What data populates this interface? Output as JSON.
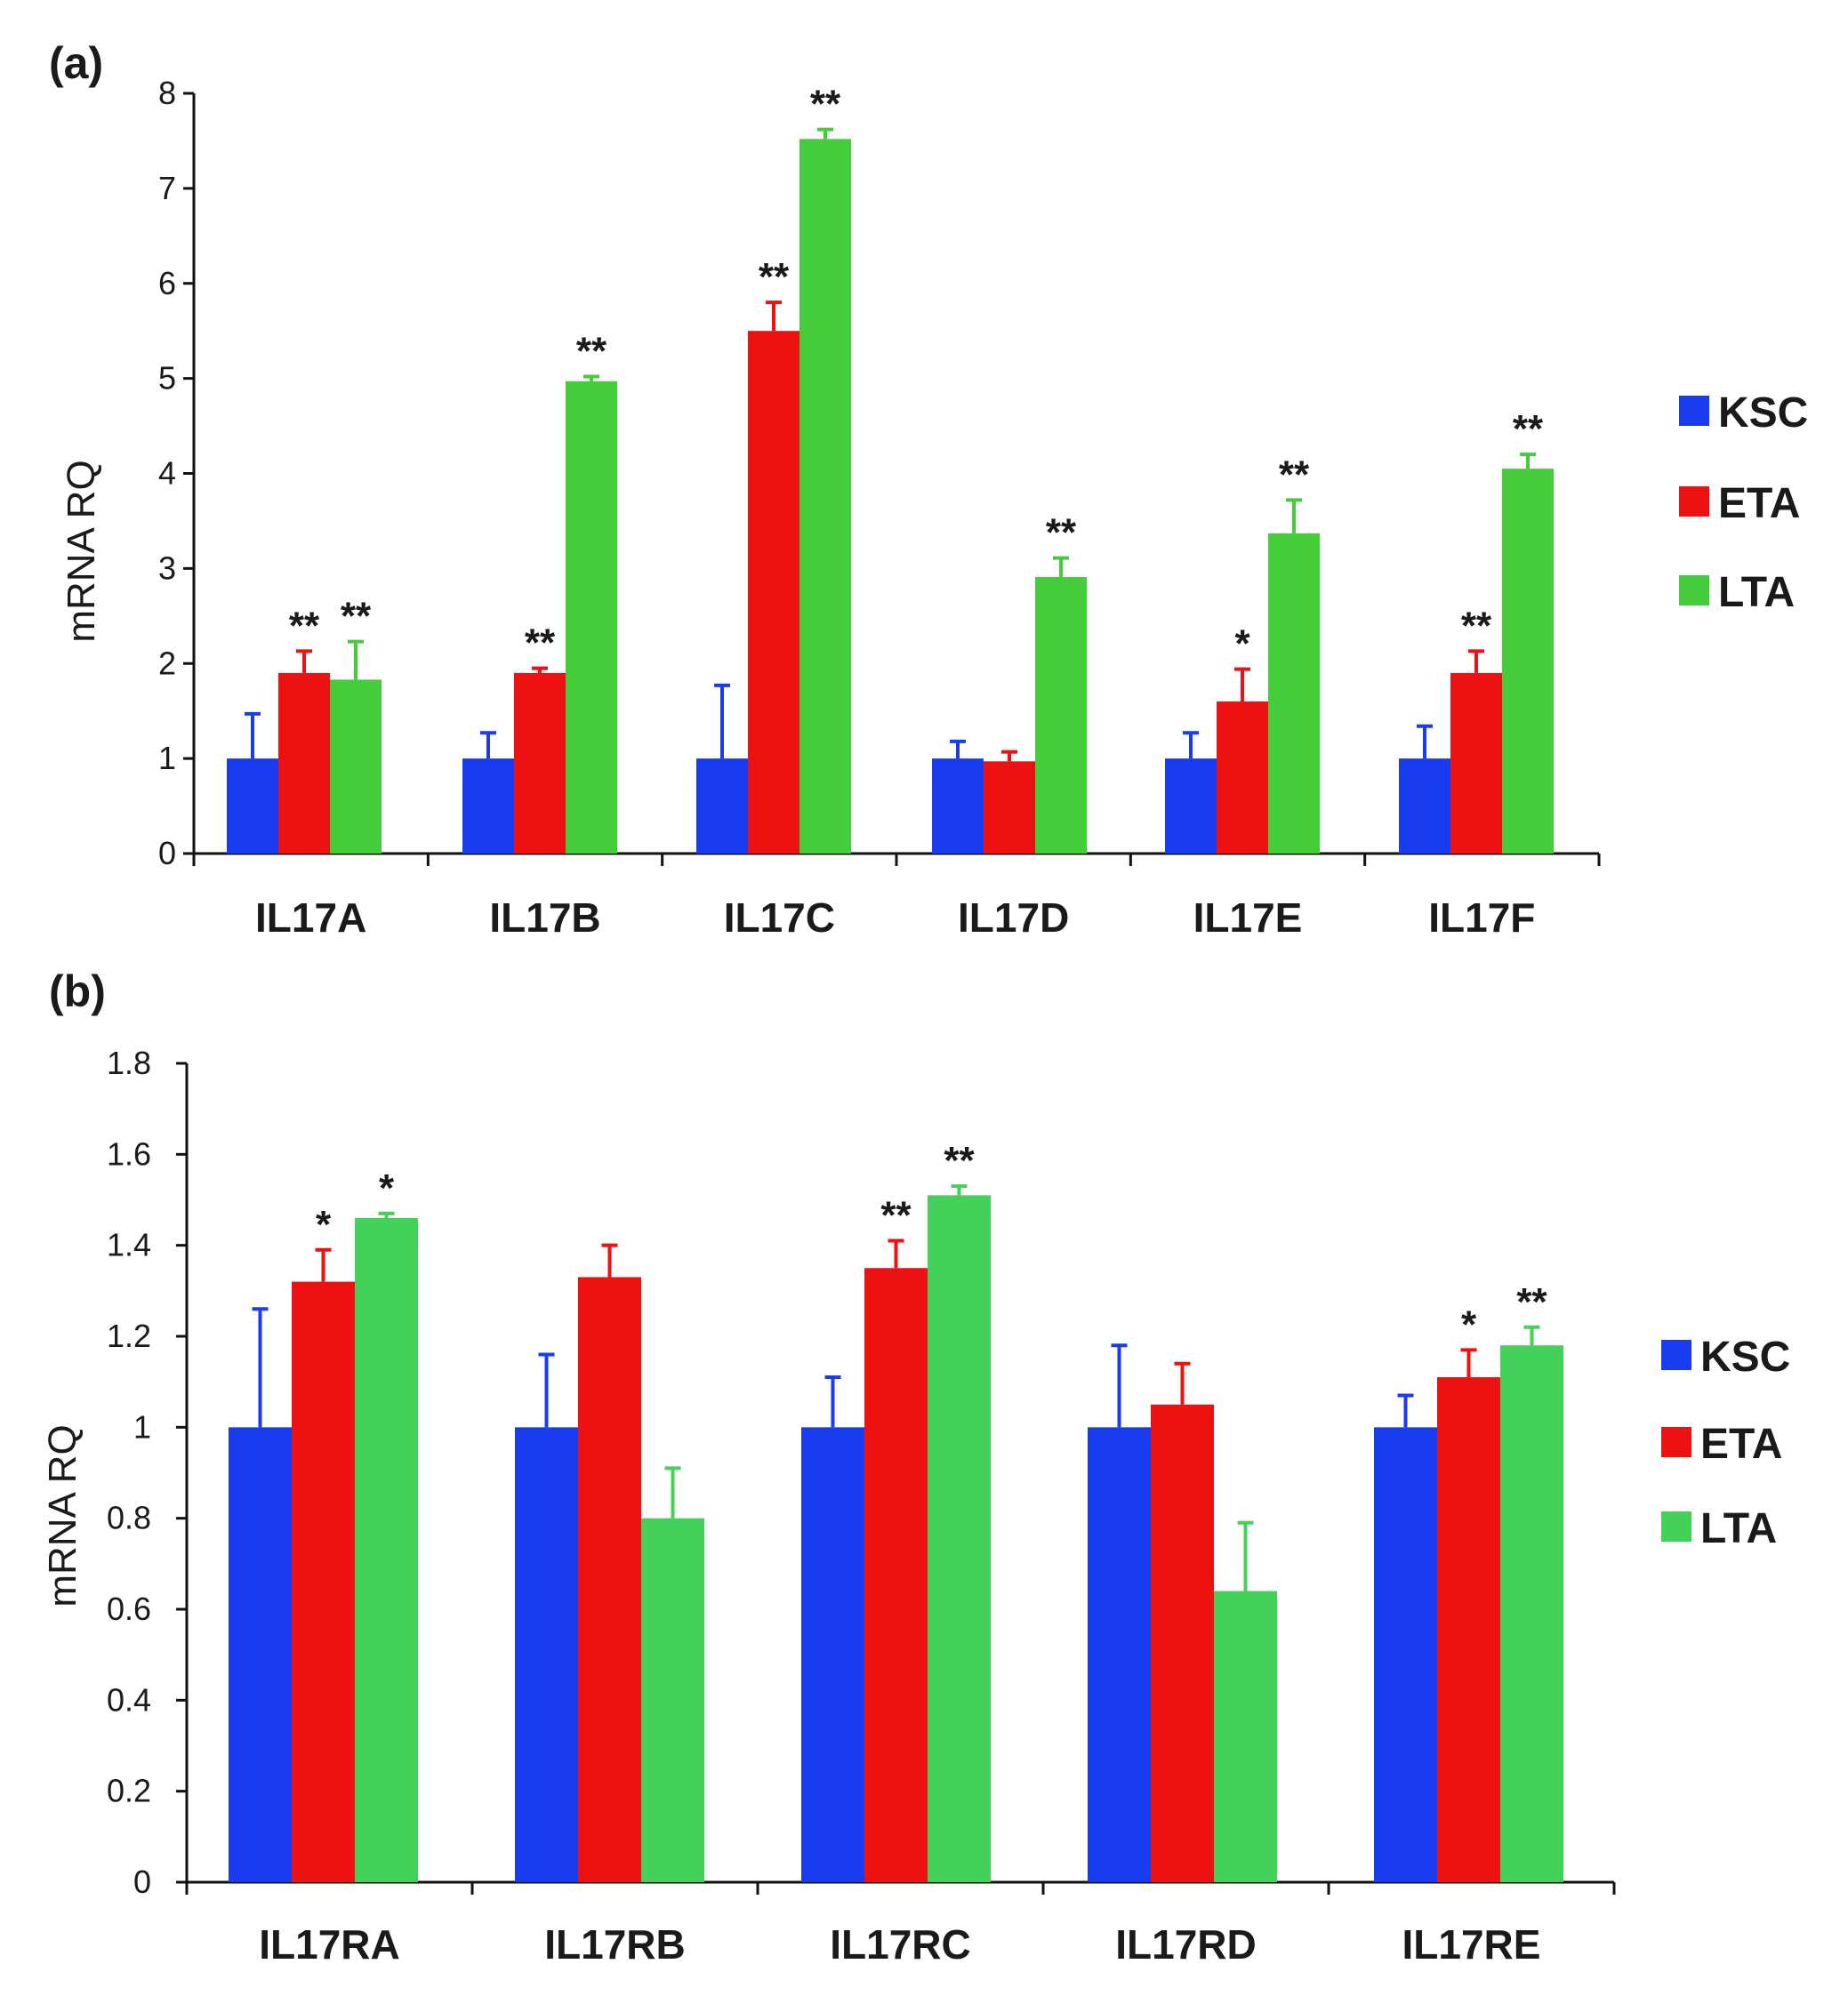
{
  "figure": {
    "panels": [
      {
        "label": "(a)",
        "ylabel": "mRNA RQ",
        "yticks": [
          "0",
          "1",
          "2",
          "3",
          "4",
          "5",
          "6",
          "7",
          "8"
        ],
        "legend": [
          "KSC",
          "ETA",
          "LTA"
        ]
      },
      {
        "label": "(b)",
        "ylabel": "mRNA RQ",
        "yticks": [
          "0",
          "0.2",
          "0.4",
          "0.6",
          "0.8",
          "1",
          "1.2",
          "1.4",
          "1.6",
          "1.8"
        ],
        "legend": [
          "KSC",
          "ETA",
          "LTA"
        ]
      }
    ]
  },
  "chart_data": [
    {
      "type": "bar",
      "title": "",
      "xlabel": "",
      "ylabel": "mRNA RQ",
      "ylim": [
        0,
        8
      ],
      "categories": [
        "IL17A",
        "IL17B",
        "IL17C",
        "IL17D",
        "IL17E",
        "IL17F"
      ],
      "legend_position": "right",
      "grid": false,
      "series": [
        {
          "name": "KSC",
          "color": "#1a3cf0",
          "values": [
            1,
            1,
            1,
            1,
            1,
            1
          ],
          "errors": [
            0.47,
            0.27,
            0.77,
            0.18,
            0.27,
            0.34
          ],
          "sig": [
            "",
            "",
            "",
            "",
            "",
            ""
          ]
        },
        {
          "name": "ETA",
          "color": "#ee1111",
          "values": [
            1.9,
            1.9,
            5.5,
            0.97,
            1.6,
            1.9
          ],
          "errors": [
            0.23,
            0.05,
            0.3,
            0.1,
            0.34,
            0.23
          ],
          "sig": [
            "**",
            "**",
            "**",
            "",
            "*",
            "**"
          ]
        },
        {
          "name": "LTA",
          "color": "#44cc3a",
          "values": [
            1.83,
            4.97,
            7.52,
            2.91,
            3.37,
            4.05
          ],
          "errors": [
            0.4,
            0.05,
            0.1,
            0.2,
            0.35,
            0.15
          ],
          "sig": [
            "**",
            "**",
            "**",
            "**",
            "**",
            "**"
          ]
        }
      ]
    },
    {
      "type": "bar",
      "title": "",
      "xlabel": "",
      "ylabel": "mRNA RQ",
      "ylim": [
        0,
        1.8
      ],
      "categories": [
        "IL17RA",
        "IL17RB",
        "IL17RC",
        "IL17RD",
        "IL17RE"
      ],
      "legend_position": "right",
      "grid": false,
      "series": [
        {
          "name": "KSC",
          "color": "#1a3cf0",
          "values": [
            1.0,
            1.0,
            1.0,
            1.0,
            1.0
          ],
          "errors": [
            0.26,
            0.16,
            0.11,
            0.18,
            0.07
          ],
          "sig": [
            "",
            "",
            "",
            "",
            ""
          ]
        },
        {
          "name": "ETA",
          "color": "#ee1111",
          "values": [
            1.32,
            1.33,
            1.35,
            1.05,
            1.11
          ],
          "errors": [
            0.07,
            0.07,
            0.06,
            0.09,
            0.06
          ],
          "sig": [
            "*",
            "",
            "**",
            "",
            "*"
          ]
        },
        {
          "name": "LTA",
          "color": "#44d15a",
          "values": [
            1.46,
            0.8,
            1.51,
            0.64,
            1.18
          ],
          "errors": [
            0.01,
            0.11,
            0.02,
            0.15,
            0.04
          ],
          "sig": [
            "*",
            "",
            "**",
            "",
            "**"
          ]
        }
      ]
    }
  ]
}
